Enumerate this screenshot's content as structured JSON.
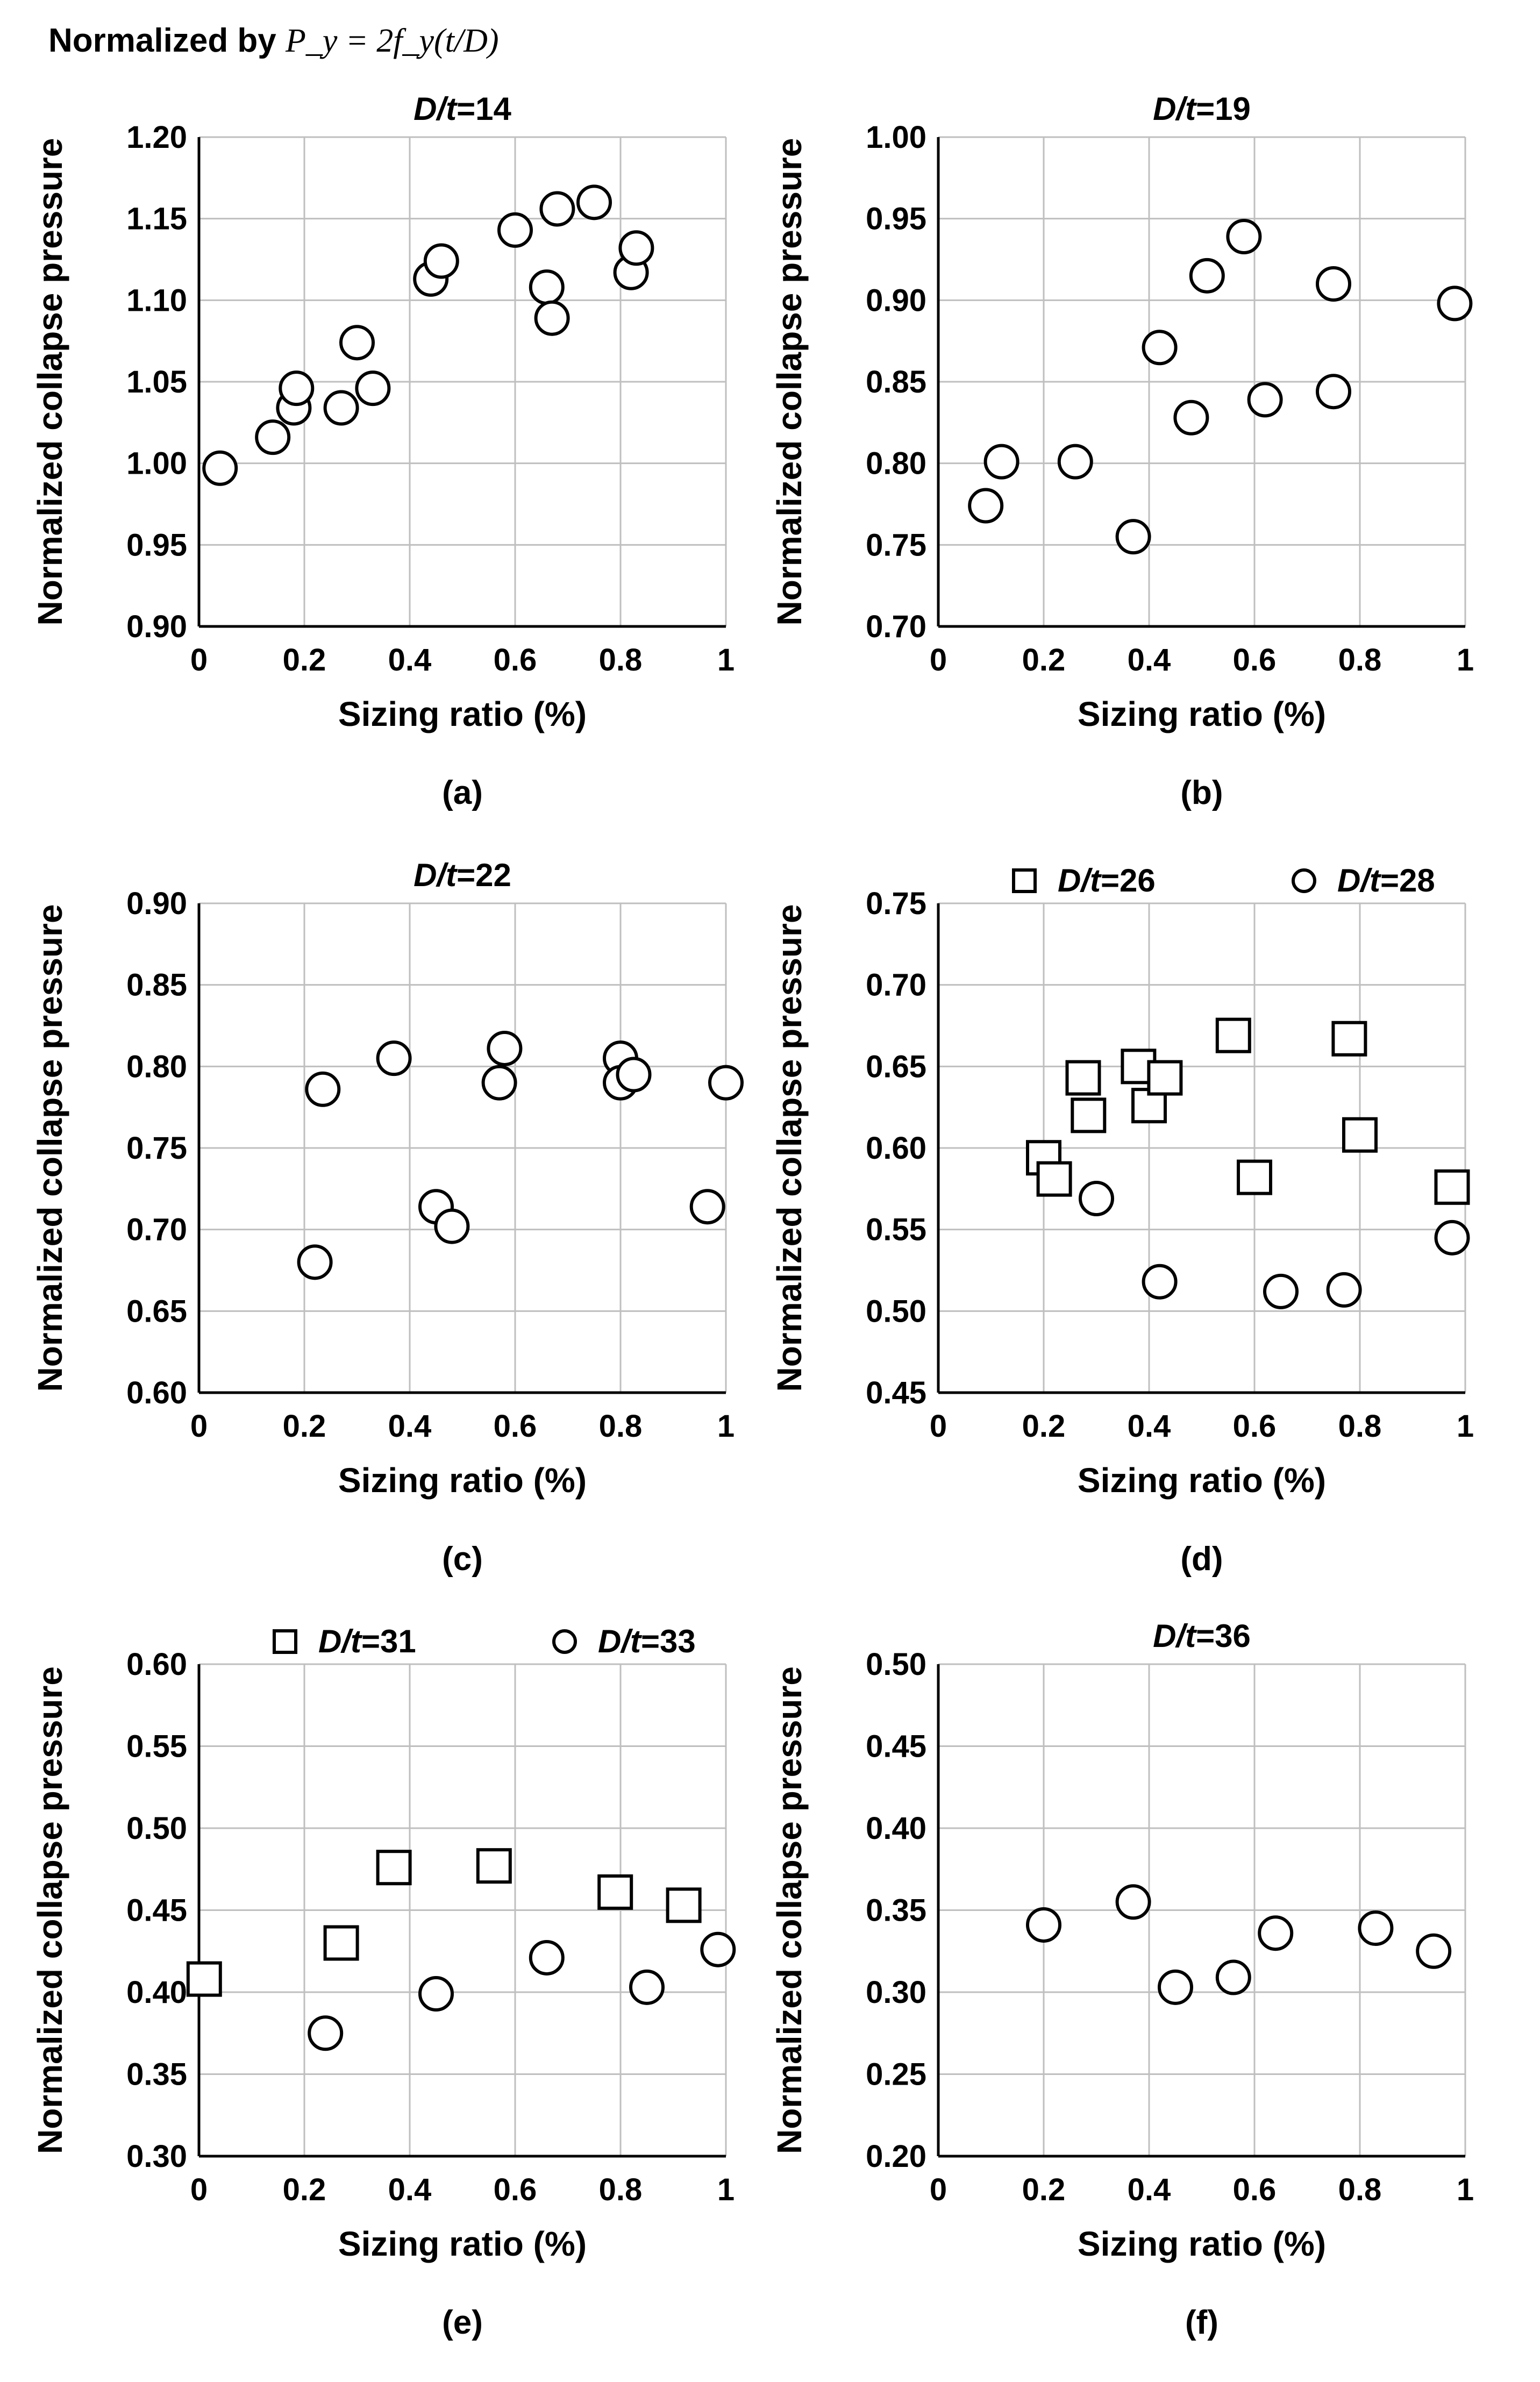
{
  "figure_title": {
    "prefix": "Normalized by ",
    "equation": "P_y = 2f_y(t/D)"
  },
  "colors": {
    "marker_stroke": "#000000",
    "grid": "#bfbfbf",
    "axis": "#000000"
  },
  "chart_data": [
    {
      "panel": "(a)",
      "type": "scatter",
      "title": "D/t=14",
      "legend": null,
      "xlabel": "Sizing ratio (%)",
      "ylabel": "Normalized collapse pressure",
      "xlim": [
        0,
        1
      ],
      "ylim": [
        0.9,
        1.2
      ],
      "xticks": [
        0,
        0.2,
        0.4,
        0.6,
        0.8,
        1
      ],
      "xtick_labels": [
        "0",
        "0.2",
        "0.4",
        "0.6",
        "0.8",
        "1"
      ],
      "yticks": [
        0.9,
        0.95,
        1.0,
        1.05,
        1.1,
        1.15,
        1.2
      ],
      "ytick_labels": [
        "0.90",
        "0.95",
        "1.00",
        "1.05",
        "1.10",
        "1.15",
        "1.20"
      ],
      "grid": true,
      "series": [
        {
          "name": "D/t=14",
          "marker": "circle",
          "points": [
            [
              0.04,
              0.997
            ],
            [
              0.14,
              1.016
            ],
            [
              0.18,
              1.034
            ],
            [
              0.185,
              1.046
            ],
            [
              0.27,
              1.034
            ],
            [
              0.3,
              1.074
            ],
            [
              0.33,
              1.046
            ],
            [
              0.44,
              1.113
            ],
            [
              0.46,
              1.124
            ],
            [
              0.6,
              1.143
            ],
            [
              0.66,
              1.108
            ],
            [
              0.67,
              1.089
            ],
            [
              0.68,
              1.156
            ],
            [
              0.75,
              1.16
            ],
            [
              0.82,
              1.117
            ],
            [
              0.83,
              1.132
            ]
          ]
        }
      ]
    },
    {
      "panel": "(b)",
      "type": "scatter",
      "title": "D/t=19",
      "legend": null,
      "xlabel": "Sizing ratio (%)",
      "ylabel": "Normalized collapse pressure",
      "xlim": [
        0,
        1
      ],
      "ylim": [
        0.7,
        1.0
      ],
      "xticks": [
        0,
        0.2,
        0.4,
        0.6,
        0.8,
        1
      ],
      "xtick_labels": [
        "0",
        "0.2",
        "0.4",
        "0.6",
        "0.8",
        "1"
      ],
      "yticks": [
        0.7,
        0.75,
        0.8,
        0.85,
        0.9,
        0.95,
        1.0
      ],
      "ytick_labels": [
        "0.70",
        "0.75",
        "0.80",
        "0.85",
        "0.90",
        "0.95",
        "1.00"
      ],
      "grid": true,
      "series": [
        {
          "name": "D/t=19",
          "marker": "circle",
          "points": [
            [
              0.09,
              0.774
            ],
            [
              0.12,
              0.801
            ],
            [
              0.26,
              0.801
            ],
            [
              0.37,
              0.755
            ],
            [
              0.42,
              0.871
            ],
            [
              0.48,
              0.828
            ],
            [
              0.51,
              0.915
            ],
            [
              0.58,
              0.939
            ],
            [
              0.62,
              0.839
            ],
            [
              0.75,
              0.844
            ],
            [
              0.75,
              0.91
            ],
            [
              0.98,
              0.898
            ]
          ]
        }
      ]
    },
    {
      "panel": "(c)",
      "type": "scatter",
      "title": "D/t=22",
      "legend": null,
      "xlabel": "Sizing ratio (%)",
      "ylabel": "Normalized collapse pressure",
      "xlim": [
        0,
        1
      ],
      "ylim": [
        0.6,
        0.9
      ],
      "xticks": [
        0,
        0.2,
        0.4,
        0.6,
        0.8,
        1
      ],
      "xtick_labels": [
        "0",
        "0.2",
        "0.4",
        "0.6",
        "0.8",
        "1"
      ],
      "yticks": [
        0.6,
        0.65,
        0.7,
        0.75,
        0.8,
        0.85,
        0.9
      ],
      "ytick_labels": [
        "0.60",
        "0.65",
        "0.70",
        "0.75",
        "0.80",
        "0.85",
        "0.90"
      ],
      "grid": true,
      "series": [
        {
          "name": "D/t=22",
          "marker": "circle",
          "points": [
            [
              0.22,
              0.68
            ],
            [
              0.235,
              0.786
            ],
            [
              0.37,
              0.805
            ],
            [
              0.45,
              0.714
            ],
            [
              0.48,
              0.702
            ],
            [
              0.57,
              0.79
            ],
            [
              0.58,
              0.811
            ],
            [
              0.8,
              0.805
            ],
            [
              0.8,
              0.79
            ],
            [
              0.825,
              0.795
            ],
            [
              0.965,
              0.714
            ],
            [
              1.0,
              0.79
            ]
          ]
        }
      ]
    },
    {
      "panel": "(d)",
      "type": "scatter",
      "title": "",
      "legend": "top",
      "xlabel": "Sizing ratio (%)",
      "ylabel": "Normalized collapse pressure",
      "xlim": [
        0,
        1
      ],
      "ylim": [
        0.45,
        0.75
      ],
      "xticks": [
        0,
        0.2,
        0.4,
        0.6,
        0.8,
        1
      ],
      "xtick_labels": [
        "0",
        "0.2",
        "0.4",
        "0.6",
        "0.8",
        "1"
      ],
      "yticks": [
        0.45,
        0.5,
        0.55,
        0.6,
        0.65,
        0.7,
        0.75
      ],
      "ytick_labels": [
        "0.45",
        "0.50",
        "0.55",
        "0.60",
        "0.65",
        "0.70",
        "0.75"
      ],
      "grid": true,
      "series": [
        {
          "name": "D/t=26",
          "marker": "square",
          "points": [
            [
              0.2,
              0.594
            ],
            [
              0.22,
              0.581
            ],
            [
              0.275,
              0.643
            ],
            [
              0.285,
              0.62
            ],
            [
              0.38,
              0.65
            ],
            [
              0.4,
              0.626
            ],
            [
              0.43,
              0.643
            ],
            [
              0.56,
              0.669
            ],
            [
              0.6,
              0.582
            ],
            [
              0.78,
              0.667
            ],
            [
              0.8,
              0.608
            ],
            [
              0.975,
              0.576
            ]
          ]
        },
        {
          "name": "D/t=28",
          "marker": "circle",
          "points": [
            [
              0.3,
              0.569
            ],
            [
              0.42,
              0.518
            ],
            [
              0.65,
              0.512
            ],
            [
              0.77,
              0.513
            ],
            [
              0.975,
              0.545
            ]
          ]
        }
      ]
    },
    {
      "panel": "(e)",
      "type": "scatter",
      "title": "",
      "legend": "top",
      "xlabel": "Sizing ratio (%)",
      "ylabel": "Normalized collapse pressure",
      "xlim": [
        0,
        1
      ],
      "ylim": [
        0.3,
        0.6
      ],
      "xticks": [
        0,
        0.2,
        0.4,
        0.6,
        0.8,
        1
      ],
      "xtick_labels": [
        "0",
        "0.2",
        "0.4",
        "0.6",
        "0.8",
        "1"
      ],
      "yticks": [
        0.3,
        0.35,
        0.4,
        0.45,
        0.5,
        0.55,
        0.6
      ],
      "ytick_labels": [
        "0.30",
        "0.35",
        "0.40",
        "0.45",
        "0.50",
        "0.55",
        "0.60"
      ],
      "grid": true,
      "series": [
        {
          "name": "D/t=31",
          "marker": "square",
          "points": [
            [
              0.01,
              0.408
            ],
            [
              0.27,
              0.43
            ],
            [
              0.37,
              0.476
            ],
            [
              0.56,
              0.477
            ],
            [
              0.79,
              0.461
            ],
            [
              0.92,
              0.453
            ]
          ]
        },
        {
          "name": "D/t=33",
          "marker": "circle",
          "points": [
            [
              0.24,
              0.375
            ],
            [
              0.45,
              0.399
            ],
            [
              0.66,
              0.421
            ],
            [
              0.85,
              0.403
            ],
            [
              0.985,
              0.426
            ]
          ]
        }
      ]
    },
    {
      "panel": "(f)",
      "type": "scatter",
      "title": "D/t=36",
      "legend": null,
      "xlabel": "Sizing ratio (%)",
      "ylabel": "Normalized collapse pressure",
      "xlim": [
        0,
        1
      ],
      "ylim": [
        0.2,
        0.5
      ],
      "xticks": [
        0,
        0.2,
        0.4,
        0.6,
        0.8,
        1
      ],
      "xtick_labels": [
        "0",
        "0.2",
        "0.4",
        "0.6",
        "0.8",
        "1"
      ],
      "yticks": [
        0.2,
        0.25,
        0.3,
        0.35,
        0.4,
        0.45,
        0.5
      ],
      "ytick_labels": [
        "0.20",
        "0.25",
        "0.30",
        "0.35",
        "0.40",
        "0.45",
        "0.50"
      ],
      "grid": true,
      "series": [
        {
          "name": "D/t=36",
          "marker": "circle",
          "points": [
            [
              0.2,
              0.341
            ],
            [
              0.37,
              0.355
            ],
            [
              0.45,
              0.303
            ],
            [
              0.56,
              0.309
            ],
            [
              0.64,
              0.336
            ],
            [
              0.83,
              0.339
            ],
            [
              0.94,
              0.325
            ]
          ]
        }
      ]
    }
  ]
}
